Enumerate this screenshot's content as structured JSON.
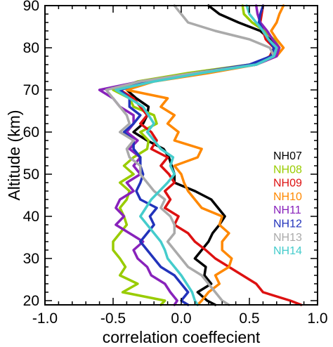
{
  "chart_data": {
    "type": "line",
    "xlabel": "correlation coeffecient",
    "ylabel": "Altitude (km)",
    "xlim": [
      -1.0,
      1.0
    ],
    "ylim": [
      19,
      90
    ],
    "x_ticks": [
      "-1.0",
      "-0.5",
      "0.0",
      "0.5",
      "1.0"
    ],
    "x_tick_values": [
      -1.0,
      -0.5,
      0.0,
      0.5,
      1.0
    ],
    "y_ticks": [
      "20",
      "30",
      "40",
      "50",
      "60",
      "70",
      "80",
      "90"
    ],
    "y_tick_values": [
      20,
      30,
      40,
      50,
      60,
      70,
      80,
      90
    ],
    "grid": false,
    "legend_position": "right",
    "altitudes": [
      19,
      20,
      22,
      24,
      26,
      28,
      30,
      32,
      34,
      36,
      38,
      40,
      42,
      44,
      46,
      48,
      50,
      52,
      54,
      56,
      58,
      60,
      62,
      64,
      66,
      68,
      70,
      72,
      74,
      76,
      78,
      80,
      82,
      84,
      86,
      88,
      90
    ],
    "series": [
      {
        "name": "NH07",
        "color": "#000000",
        "values": [
          0.25,
          0.19,
          0.12,
          0.22,
          0.17,
          0.18,
          0.1,
          0.15,
          0.2,
          0.23,
          0.28,
          0.32,
          0.27,
          0.22,
          0.1,
          -0.05,
          -0.05,
          -0.07,
          -0.09,
          -0.13,
          -0.25,
          -0.35,
          -0.28,
          -0.25,
          -0.24,
          -0.33,
          -0.4,
          -0.22,
          0.13,
          0.55,
          0.68,
          0.7,
          0.65,
          0.58,
          0.42,
          0.28,
          0.2
        ]
      },
      {
        "name": "NH08",
        "color": "#99cc00",
        "values": [
          -0.15,
          -0.12,
          -0.43,
          -0.32,
          -0.45,
          -0.41,
          -0.45,
          -0.5,
          -0.5,
          -0.45,
          -0.4,
          -0.42,
          -0.45,
          -0.4,
          -0.38,
          -0.45,
          -0.35,
          -0.42,
          -0.35,
          -0.25,
          -0.24,
          -0.3,
          -0.18,
          -0.2,
          -0.35,
          -0.38,
          -0.5,
          -0.32,
          0.05,
          0.5,
          0.7,
          0.72,
          0.68,
          0.61,
          0.52,
          0.46,
          0.45
        ]
      },
      {
        "name": "NH09",
        "color": "#dd1111",
        "values": [
          0.88,
          0.8,
          0.6,
          0.55,
          0.45,
          0.35,
          0.25,
          0.18,
          0.1,
          0.05,
          -0.05,
          -0.02,
          -0.12,
          -0.08,
          -0.12,
          -0.05,
          -0.09,
          -0.15,
          -0.1,
          -0.22,
          -0.18,
          -0.22,
          -0.3,
          -0.25,
          -0.3,
          -0.35,
          -0.45,
          -0.25,
          0.1,
          0.55,
          0.65,
          0.68,
          0.62,
          0.6,
          0.58,
          0.59,
          0.6
        ]
      },
      {
        "name": "NH10",
        "color": "#ff8800",
        "values": [
          0.12,
          0.15,
          0.2,
          0.28,
          0.25,
          0.35,
          0.37,
          0.3,
          0.3,
          0.35,
          0.28,
          0.3,
          0.15,
          0.1,
          0.05,
          0.02,
          0.0,
          -0.05,
          0.12,
          0.15,
          -0.05,
          -0.02,
          -0.1,
          -0.05,
          -0.15,
          -0.1,
          -0.4,
          -0.2,
          0.2,
          0.55,
          0.7,
          0.75,
          0.7,
          0.66,
          0.7,
          0.72,
          0.75
        ]
      },
      {
        "name": "NH11",
        "color": "#8822bb",
        "values": [
          -0.05,
          -0.03,
          -0.08,
          -0.12,
          -0.22,
          -0.25,
          -0.32,
          -0.35,
          -0.28,
          -0.38,
          -0.48,
          -0.42,
          -0.48,
          -0.45,
          -0.35,
          -0.4,
          -0.3,
          -0.35,
          -0.3,
          -0.38,
          -0.32,
          -0.4,
          -0.35,
          -0.35,
          -0.45,
          -0.5,
          -0.6,
          -0.3,
          0.1,
          0.55,
          0.7,
          0.72,
          0.67,
          0.63,
          0.58,
          0.56,
          0.55
        ]
      },
      {
        "name": "NH12",
        "color": "#2233bb",
        "values": [
          0.05,
          0.0,
          0.05,
          0.0,
          -0.05,
          -0.15,
          -0.2,
          -0.25,
          -0.3,
          -0.25,
          -0.2,
          -0.23,
          -0.18,
          -0.3,
          -0.33,
          -0.3,
          -0.28,
          -0.3,
          -0.3,
          -0.35,
          -0.35,
          -0.42,
          -0.35,
          -0.3,
          -0.38,
          -0.38,
          -0.45,
          -0.25,
          0.1,
          0.5,
          0.66,
          0.68,
          0.64,
          0.6,
          0.57,
          0.58,
          0.6
        ]
      },
      {
        "name": "NH13",
        "color": "#aaaaaa",
        "values": [
          0.35,
          0.3,
          0.25,
          0.2,
          0.15,
          0.05,
          0.0,
          -0.05,
          -0.1,
          -0.05,
          -0.05,
          -0.08,
          -0.15,
          -0.12,
          -0.2,
          -0.25,
          -0.3,
          -0.3,
          -0.38,
          -0.4,
          -0.35,
          -0.45,
          -0.38,
          -0.4,
          -0.45,
          -0.5,
          -0.55,
          -0.3,
          0.1,
          0.55,
          0.68,
          0.65,
          0.5,
          0.25,
          0.05,
          0.0,
          -0.05
        ]
      },
      {
        "name": "NH14",
        "color": "#44cccc",
        "values": [
          0.12,
          0.1,
          0.08,
          0.04,
          0.0,
          -0.05,
          -0.1,
          -0.12,
          -0.15,
          -0.2,
          -0.25,
          -0.3,
          -0.26,
          -0.22,
          -0.16,
          -0.1,
          -0.05,
          -0.08,
          -0.06,
          -0.15,
          -0.2,
          -0.25,
          -0.2,
          -0.24,
          -0.28,
          -0.38,
          -0.48,
          -0.2,
          0.15,
          0.55,
          0.68,
          0.7,
          0.64,
          0.6,
          0.55,
          0.5,
          0.48
        ]
      }
    ]
  }
}
